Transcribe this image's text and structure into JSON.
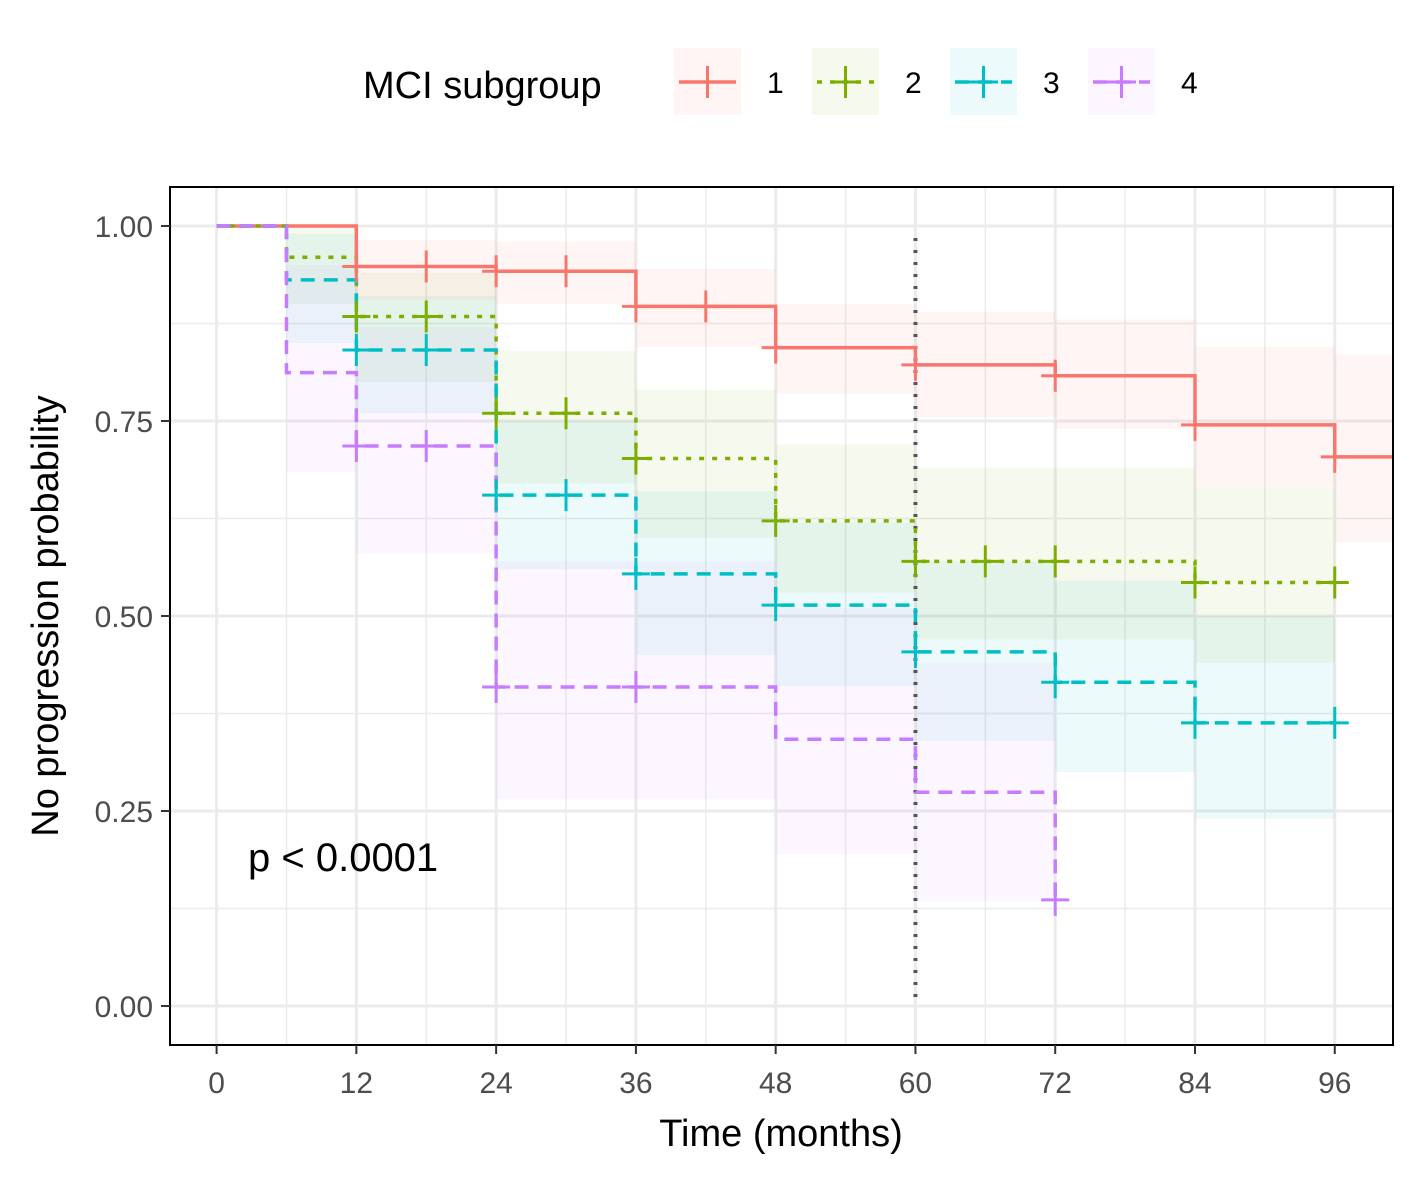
{
  "chart_data": {
    "type": "line",
    "subtype": "kaplan-meier step curves with confidence bands and censor marks",
    "xlabel": "Time (months)",
    "ylabel": "No progression probability",
    "xlim": [
      -4,
      101
    ],
    "ylim": [
      -0.05,
      1.05
    ],
    "x_ticks": [
      0,
      12,
      24,
      36,
      48,
      60,
      72,
      84,
      96
    ],
    "x_tick_labels": [
      "0",
      "12",
      "24",
      "36",
      "48",
      "60",
      "72",
      "84",
      "96"
    ],
    "y_ticks": [
      0,
      0.25,
      0.5,
      0.75,
      1.0
    ],
    "y_tick_labels": [
      "0.00",
      "0.25",
      "0.50",
      "0.75",
      "1.00"
    ],
    "grid": true,
    "legend": {
      "title": "MCI subgroup",
      "position": "top",
      "entries": [
        "1",
        "2",
        "3",
        "4"
      ]
    },
    "annotation": "p < 0.0001",
    "vertical_reference_line": {
      "x": 60,
      "style": "dotted",
      "color": "#555555"
    },
    "series": [
      {
        "name": "1",
        "color": "#F8766D",
        "dash": "solid",
        "steps": [
          [
            0,
            1.0
          ],
          [
            12,
            0.948
          ],
          [
            24,
            0.942
          ],
          [
            36,
            0.897
          ],
          [
            48,
            0.844
          ],
          [
            60,
            0.822
          ],
          [
            72,
            0.808
          ],
          [
            84,
            0.745
          ],
          [
            96,
            0.704
          ]
        ],
        "end_x": 101,
        "lower": [
          1.0,
          0.905,
          0.9,
          0.845,
          0.785,
          0.755,
          0.74,
          0.665,
          0.595
        ],
        "upper": [
          1.0,
          0.982,
          0.98,
          0.945,
          0.9,
          0.89,
          0.88,
          0.845,
          0.835
        ],
        "censors": [
          [
            12,
            0.948
          ],
          [
            18,
            0.948
          ],
          [
            24,
            0.942
          ],
          [
            30,
            0.942
          ],
          [
            36,
            0.897
          ],
          [
            42,
            0.897
          ],
          [
            48,
            0.844
          ],
          [
            60,
            0.822
          ],
          [
            72,
            0.808
          ],
          [
            84,
            0.745
          ],
          [
            96,
            0.704
          ]
        ]
      },
      {
        "name": "2",
        "color": "#7CAE00",
        "dash": "dotted",
        "steps": [
          [
            0,
            1.0
          ],
          [
            6,
            0.96
          ],
          [
            12,
            0.884
          ],
          [
            24,
            0.76
          ],
          [
            36,
            0.702
          ],
          [
            48,
            0.622
          ],
          [
            60,
            0.57
          ],
          [
            84,
            0.543
          ]
        ],
        "end_x": 96,
        "lower": [
          1.0,
          0.9,
          0.8,
          0.67,
          0.6,
          0.53,
          0.47,
          0.44
        ],
        "upper": [
          1.0,
          1.0,
          0.94,
          0.84,
          0.79,
          0.72,
          0.69,
          0.665
        ],
        "censors": [
          [
            12,
            0.884
          ],
          [
            18,
            0.884
          ],
          [
            24,
            0.76
          ],
          [
            30,
            0.76
          ],
          [
            36,
            0.702
          ],
          [
            48,
            0.622
          ],
          [
            60,
            0.57
          ],
          [
            66,
            0.57
          ],
          [
            72,
            0.57
          ],
          [
            84,
            0.543
          ],
          [
            96,
            0.543
          ]
        ]
      },
      {
        "name": "3",
        "color": "#00BFC4",
        "dash": "dashed",
        "steps": [
          [
            0,
            1.0
          ],
          [
            6,
            0.931
          ],
          [
            12,
            0.841
          ],
          [
            24,
            0.655
          ],
          [
            36,
            0.554
          ],
          [
            48,
            0.514
          ],
          [
            60,
            0.454
          ],
          [
            72,
            0.415
          ],
          [
            84,
            0.363
          ]
        ],
        "end_x": 96,
        "lower": [
          1.0,
          0.85,
          0.76,
          0.56,
          0.45,
          0.41,
          0.34,
          0.3,
          0.24
        ],
        "upper": [
          1.0,
          0.99,
          0.91,
          0.75,
          0.66,
          0.62,
          0.57,
          0.545,
          0.5
        ],
        "censors": [
          [
            12,
            0.841
          ],
          [
            18,
            0.841
          ],
          [
            24,
            0.655
          ],
          [
            30,
            0.655
          ],
          [
            36,
            0.554
          ],
          [
            48,
            0.514
          ],
          [
            60,
            0.454
          ],
          [
            72,
            0.415
          ],
          [
            84,
            0.363
          ],
          [
            96,
            0.363
          ]
        ]
      },
      {
        "name": "4",
        "color": "#C77CFF",
        "dash": "dashed",
        "steps": [
          [
            0,
            1.0
          ],
          [
            6,
            0.812
          ],
          [
            12,
            0.718
          ],
          [
            24,
            0.409
          ],
          [
            48,
            0.342
          ],
          [
            60,
            0.274
          ],
          [
            72,
            0.136
          ]
        ],
        "end_x": 72,
        "lower": [
          1.0,
          0.685,
          0.58,
          0.265,
          0.195,
          0.135,
          0.135
        ],
        "upper": [
          1.0,
          0.95,
          0.87,
          0.57,
          0.51,
          0.44,
          0.44
        ],
        "censors": [
          [
            12,
            0.718
          ],
          [
            18,
            0.718
          ],
          [
            24,
            0.409
          ],
          [
            36,
            0.409
          ],
          [
            72,
            0.136
          ]
        ]
      }
    ]
  }
}
